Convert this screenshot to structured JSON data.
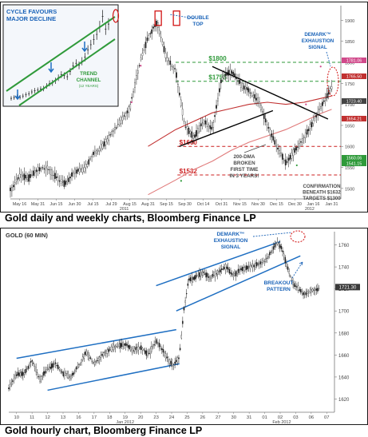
{
  "chart_data": [
    {
      "type": "line",
      "title": "Gold daily and weekly charts, Bloomberg Finance LP",
      "x_tick_labels": [
        "May 16",
        "May 31",
        "Jun 15",
        "Jun 30",
        "Jul 15",
        "Jul 29",
        "Aug 15",
        "Aug 31",
        "Sep 15",
        "Sep 30",
        "Oct 14",
        "Oct 31",
        "Nov 15",
        "Nov 30",
        "Dec 15",
        "Dec 30",
        "Jan 16",
        "Jan 31"
      ],
      "x_year_labels": [
        {
          "label": "2011",
          "at": 6.2
        },
        {
          "label": "2012",
          "at": 16.3
        }
      ],
      "y_ticks": [
        1500,
        1550,
        1600,
        1650,
        1700,
        1750,
        1800,
        1850,
        1900
      ],
      "ylim": [
        1475,
        1935
      ],
      "series": [
        {
          "role": "price",
          "x": [
            0,
            0.5,
            1,
            1.5,
            2,
            2.5,
            3,
            3.5,
            4,
            4.5,
            5,
            5.5,
            6,
            6.5,
            7,
            7.5,
            8,
            8.5,
            9,
            9.5,
            10,
            10.5,
            11,
            11.5,
            12,
            12.5,
            13,
            13.5,
            14,
            14.5,
            15,
            15.5,
            16,
            16.5,
            17,
            17.5
          ],
          "values": [
            1495,
            1530,
            1525,
            1545,
            1550,
            1525,
            1510,
            1540,
            1545,
            1580,
            1600,
            1630,
            1660,
            1690,
            1790,
            1860,
            1895,
            1810,
            1780,
            1650,
            1620,
            1660,
            1640,
            1760,
            1780,
            1750,
            1730,
            1710,
            1650,
            1600,
            1560,
            1590,
            1620,
            1660,
            1700,
            1740
          ]
        },
        {
          "role": "200-day moving average",
          "x": [
            7.5,
            9,
            10,
            11,
            12,
            13,
            14,
            15,
            16,
            17,
            17.5
          ],
          "values": [
            1485,
            1520,
            1545,
            1565,
            1590,
            1610,
            1625,
            1640,
            1660,
            1680,
            1688
          ]
        },
        {
          "role": "moving average",
          "x": [
            7.5,
            9,
            10,
            11,
            12,
            13,
            14,
            15,
            16,
            17,
            17.5
          ],
          "values": [
            1600,
            1640,
            1660,
            1680,
            1690,
            1700,
            1705,
            1700,
            1705,
            1715,
            1720
          ]
        }
      ],
      "trendlines": [
        {
          "label": "resistance",
          "points": [
            [
              11,
              1790
            ],
            [
              17.3,
              1665
            ]
          ]
        },
        {
          "label": "support",
          "points": [
            [
              9.2,
              1600
            ],
            [
              14.3,
              1685
            ]
          ]
        }
      ],
      "levels": [
        {
          "label": "$1800",
          "value": 1800
        },
        {
          "label": "$1755",
          "value": 1755
        },
        {
          "label": "$1600",
          "value": 1600
        },
        {
          "label": "$1532",
          "value": 1532
        }
      ],
      "price_tags": [
        "1781.06",
        "1765.50",
        "1723.40",
        "1654.21",
        "1560.06",
        "1541.15"
      ],
      "annotations": {
        "double_top": "DOUBLE TOP",
        "demark": "DEMARK™ EXHAUSTION SIGNAL",
        "dma_break": "200-DMA BROKEN FIRST TIME IN 3 YEARS!",
        "confirmation": "CONFIRMATION BENEATH $1632 TARGETS $1300"
      },
      "inset": {
        "title": "CYCLE FAVOURS MAJOR DECLINE",
        "channel_label": "TREND CHANNEL",
        "channel_sublabel": "(12 YEARS)",
        "values": [
          260,
          275,
          290,
          280,
          305,
          330,
          350,
          385,
          410,
          420,
          440,
          450,
          500,
          550,
          560,
          600,
          660,
          720,
          700,
          680,
          780,
          890,
          940,
          900,
          980,
          1060,
          1200,
          1300,
          1400,
          1500,
          1650,
          1850,
          1600,
          1700
        ]
      }
    },
    {
      "type": "line",
      "title": "GOLD (60 MIN)",
      "caption": "Gold hourly chart, Bloomberg Finance LP",
      "x_tick_labels": [
        "10",
        "11",
        "12",
        "13",
        "16",
        "17",
        "18",
        "19",
        "20",
        "23",
        "24",
        "25",
        "26",
        "27",
        "30",
        "31",
        "01",
        "02",
        "03",
        "06",
        "07"
      ],
      "x_month_labels": [
        {
          "label": "Jan 2012",
          "at": 7.5
        },
        {
          "label": "Feb 2012",
          "at": 17.6
        }
      ],
      "y_ticks": [
        1620,
        1640,
        1660,
        1680,
        1700,
        1720,
        1740,
        1760
      ],
      "ylim": [
        1608,
        1772
      ],
      "series": [
        {
          "role": "price",
          "x": [
            0,
            0.5,
            1,
            1.5,
            2,
            2.5,
            3,
            3.5,
            4,
            4.5,
            5,
            5.5,
            6,
            6.5,
            7,
            7.5,
            8,
            8.5,
            9,
            9.5,
            10,
            10.3,
            10.6,
            11,
            11.3,
            11.6,
            12,
            12.5,
            13,
            13.5,
            14,
            14.5,
            15,
            15.5,
            16,
            16.5,
            17,
            17.3,
            17.6,
            18,
            18.3,
            18.6,
            19,
            19.5,
            20
          ],
          "values": [
            1630,
            1642,
            1643,
            1655,
            1638,
            1647,
            1652,
            1643,
            1640,
            1650,
            1663,
            1652,
            1660,
            1665,
            1668,
            1670,
            1664,
            1667,
            1660,
            1673,
            1662,
            1655,
            1650,
            1658,
            1702,
            1728,
            1730,
            1735,
            1730,
            1735,
            1740,
            1732,
            1738,
            1740,
            1742,
            1745,
            1755,
            1762,
            1757,
            1738,
            1725,
            1722,
            1715,
            1718,
            1720
          ]
        }
      ],
      "trendlines": [
        {
          "label": "lower channel 1",
          "points": [
            [
              2.5,
              1628
            ],
            [
              11,
              1652
            ]
          ]
        },
        {
          "label": "upper channel 1",
          "points": [
            [
              0.5,
              1657
            ],
            [
              10.8,
              1683
            ]
          ]
        },
        {
          "label": "lower channel 2",
          "points": [
            [
              10.8,
              1700
            ],
            [
              18.8,
              1750
            ]
          ]
        },
        {
          "label": "upper channel 2",
          "points": [
            [
              9.5,
              1723
            ],
            [
              17.5,
              1763
            ]
          ]
        }
      ],
      "price_tags": [
        "1721.30"
      ],
      "annotations": {
        "demark": "DEMARK™ EXHAUSTION SIGNAL",
        "breakout": "BREAKOUT PATTERN"
      }
    }
  ],
  "captions": {
    "top": "Gold daily and weekly charts, Bloomberg Finance LP",
    "bottom": "Gold hourly chart, Bloomberg Finance LP"
  },
  "colors": {
    "price": "#1a1a1a",
    "ma_dma": "#e07a7a",
    "ma_short": "#c13030",
    "level_green": "#2f9a3a",
    "level_red": "#cc1f1f",
    "annotation_blue": "#1a63b8",
    "trend_blue": "#1f6fc2",
    "inset_bg": "#f4f7fb"
  }
}
